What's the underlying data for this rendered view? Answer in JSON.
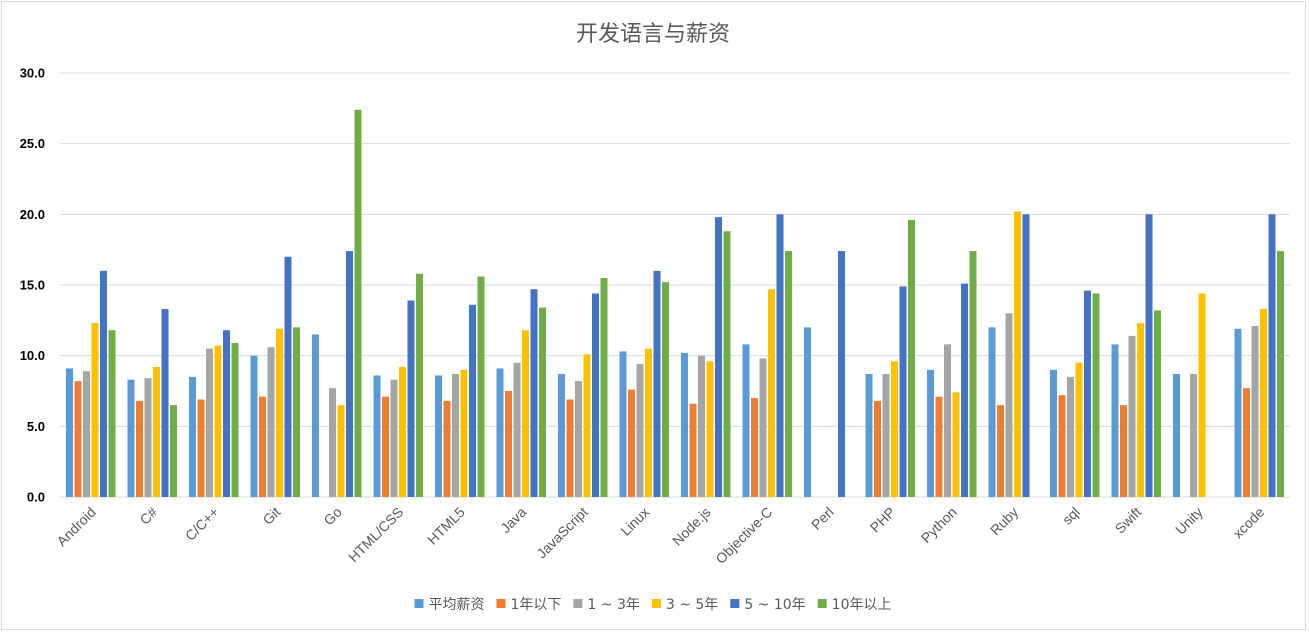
{
  "chart_data": {
    "type": "bar",
    "title": "开发语言与薪资",
    "xlabel": "",
    "ylabel": "",
    "ylim": [
      0,
      30
    ],
    "yticks": [
      "0.0",
      "5.0",
      "10.0",
      "15.0",
      "20.0",
      "25.0",
      "30.0"
    ],
    "grid": true,
    "legend_position": "bottom",
    "categories": [
      "Android",
      "C#",
      "C/C++",
      "Git",
      "Go",
      "HTML/CSS",
      "HTML5",
      "Java",
      "JavaScript",
      "Linux",
      "Node.js",
      "Objective-C",
      "Perl",
      "PHP",
      "Python",
      "Ruby",
      "sql",
      "Swift",
      "Unity",
      "xcode"
    ],
    "series": [
      {
        "name": "平均薪资",
        "color": "#5b9bd5",
        "values": [
          9.1,
          8.3,
          8.5,
          10.0,
          11.5,
          8.6,
          8.6,
          9.1,
          8.7,
          10.3,
          10.2,
          10.8,
          12.0,
          8.7,
          9.0,
          12.0,
          9.0,
          10.8,
          8.7,
          11.9
        ]
      },
      {
        "name": "1年以下",
        "color": "#ed7d31",
        "values": [
          8.2,
          6.8,
          6.9,
          7.1,
          null,
          7.1,
          6.8,
          7.5,
          6.9,
          7.6,
          6.6,
          7.0,
          null,
          6.8,
          7.1,
          6.5,
          7.2,
          6.5,
          null,
          7.7
        ]
      },
      {
        "name": "1 ~ 3年",
        "color": "#a5a5a5",
        "values": [
          8.9,
          8.4,
          10.5,
          10.6,
          7.7,
          8.3,
          8.7,
          9.5,
          8.2,
          9.4,
          10.0,
          9.8,
          null,
          8.7,
          10.8,
          13.0,
          8.5,
          11.4,
          8.7,
          12.1
        ]
      },
      {
        "name": "3 ~ 5年",
        "color": "#ffc000",
        "values": [
          12.3,
          9.2,
          10.7,
          11.9,
          6.5,
          9.2,
          9.0,
          11.8,
          10.1,
          10.5,
          9.6,
          14.7,
          null,
          9.6,
          7.4,
          20.2,
          9.5,
          12.3,
          14.4,
          13.3
        ]
      },
      {
        "name": "5 ~ 10年",
        "color": "#4472c4",
        "values": [
          16.0,
          13.3,
          11.8,
          17.0,
          17.4,
          13.9,
          13.6,
          14.7,
          14.4,
          16.0,
          19.8,
          20.0,
          17.4,
          14.9,
          15.1,
          20.0,
          14.6,
          20.0,
          null,
          20.0
        ]
      },
      {
        "name": "10年以上",
        "color": "#70ad47",
        "values": [
          11.8,
          6.5,
          10.9,
          12.0,
          27.4,
          15.8,
          15.6,
          13.4,
          15.5,
          15.2,
          18.8,
          17.4,
          null,
          19.6,
          17.4,
          null,
          14.4,
          13.2,
          null,
          17.4
        ]
      }
    ]
  }
}
